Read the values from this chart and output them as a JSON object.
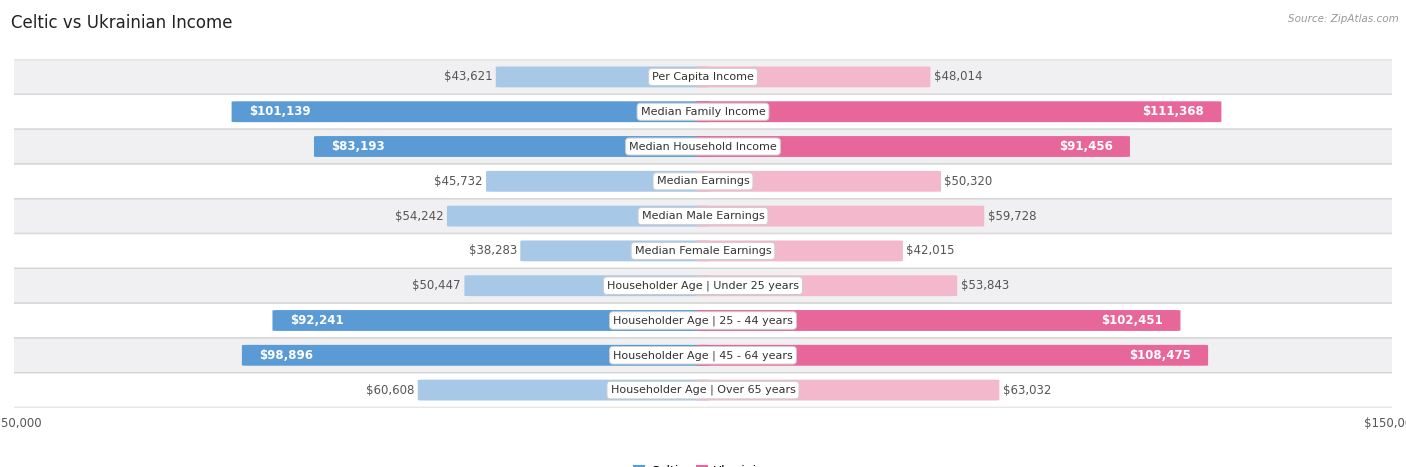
{
  "title": "Celtic vs Ukrainian Income",
  "source": "Source: ZipAtlas.com",
  "categories": [
    "Per Capita Income",
    "Median Family Income",
    "Median Household Income",
    "Median Earnings",
    "Median Male Earnings",
    "Median Female Earnings",
    "Householder Age | Under 25 years",
    "Householder Age | 25 - 44 years",
    "Householder Age | 45 - 64 years",
    "Householder Age | Over 65 years"
  ],
  "celtic_values": [
    43621,
    101139,
    83193,
    45732,
    54242,
    38283,
    50447,
    92241,
    98896,
    60608
  ],
  "ukrainian_values": [
    48014,
    111368,
    91456,
    50320,
    59728,
    42015,
    53843,
    102451,
    108475,
    63032
  ],
  "celtic_labels": [
    "$43,621",
    "$101,139",
    "$83,193",
    "$45,732",
    "$54,242",
    "$38,283",
    "$50,447",
    "$92,241",
    "$98,896",
    "$60,608"
  ],
  "ukrainian_labels": [
    "$48,014",
    "$111,368",
    "$91,456",
    "$50,320",
    "$59,728",
    "$42,015",
    "$53,843",
    "$102,451",
    "$108,475",
    "$63,032"
  ],
  "celtic_color_light": "#a8c8e8",
  "celtic_color_dark": "#5b9bd5",
  "ukrainian_color_light": "#f4b8cc",
  "ukrainian_color_dark": "#e8679a",
  "max_value": 150000,
  "bar_height": 0.58,
  "row_colors": [
    "#f0f0f2",
    "#ffffff",
    "#f0f0f2",
    "#ffffff",
    "#f0f0f2",
    "#ffffff",
    "#f0f0f2",
    "#ffffff",
    "#f0f0f2",
    "#ffffff"
  ],
  "background_color": "#ffffff",
  "label_fontsize": 8.5,
  "title_fontsize": 12,
  "category_fontsize": 8,
  "inside_threshold": 0.45
}
